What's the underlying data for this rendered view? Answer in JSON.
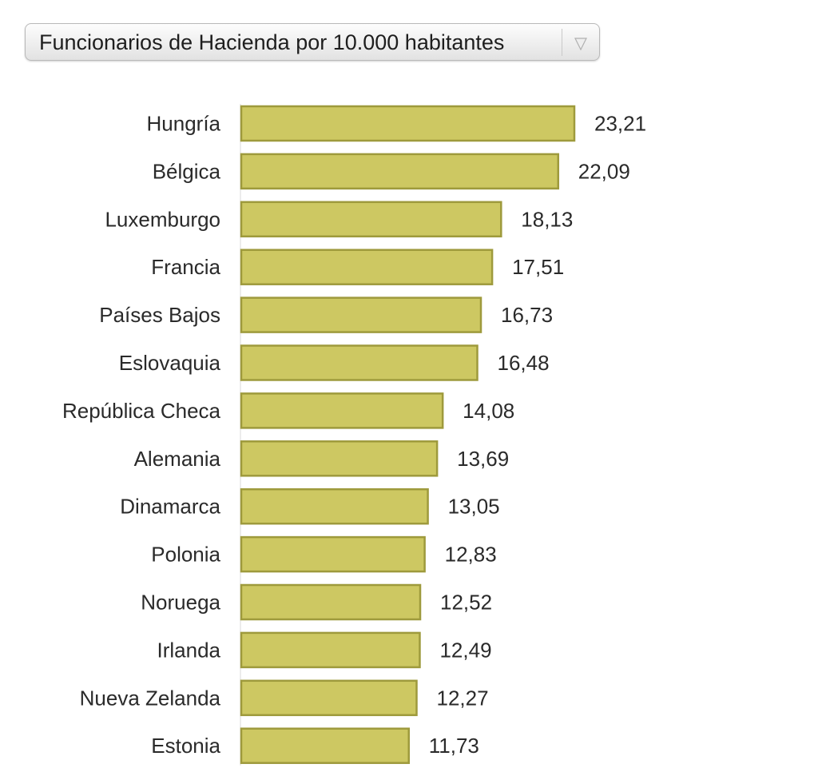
{
  "selector": {
    "selected_label": "Funcionarios de Hacienda por 10.000 habitantes",
    "icon": "chevron-down-icon"
  },
  "colors": {
    "bar_fill": "#cdc862",
    "bar_stroke": "#9e9a3c",
    "label_text": "#2a2a2a"
  },
  "chart_data": {
    "type": "bar",
    "orientation": "horizontal",
    "title": "",
    "xlabel": "",
    "ylabel": "",
    "xlim": [
      0,
      23.21
    ],
    "grid": false,
    "categories": [
      "Hungría",
      "Bélgica",
      "Luxemburgo",
      "Francia",
      "Países Bajos",
      "Eslovaquia",
      "República Checa",
      "Alemania",
      "Dinamarca",
      "Polonia",
      "Noruega",
      "Irlanda",
      "Nueva Zelanda",
      "Estonia"
    ],
    "values": [
      23.21,
      22.09,
      18.13,
      17.51,
      16.73,
      16.48,
      14.08,
      13.69,
      13.05,
      12.83,
      12.52,
      12.49,
      12.27,
      11.73
    ],
    "value_labels": [
      "23,21",
      "22,09",
      "18,13",
      "17,51",
      "16,73",
      "16,48",
      "14,08",
      "13,69",
      "13,05",
      "12,83",
      "12,52",
      "12,49",
      "12,27",
      "11,73"
    ]
  }
}
